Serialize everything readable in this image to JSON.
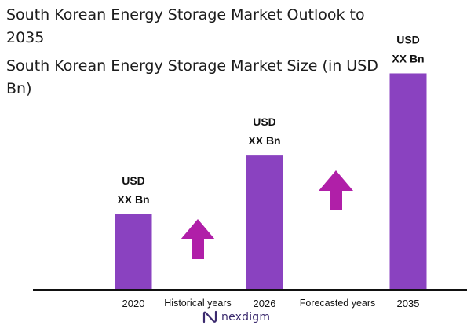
{
  "title": "South Korean Energy Storage  Market Outlook to 2035",
  "subtitle": "South Korean Energy Storage  Market Size (in USD Bn)",
  "chart_data": {
    "type": "bar",
    "categories": [
      "2020",
      "2026",
      "2035"
    ],
    "values": [
      100,
      178,
      287
    ],
    "value_labels": [
      [
        "USD",
        "XX Bn"
      ],
      [
        "USD",
        "XX Bn"
      ],
      [
        "USD",
        "XX Bn"
      ]
    ],
    "period_labels": [
      "Historical years",
      "Forecasted years"
    ],
    "bar_color": "#8a42c0",
    "arrow_color": "#b01fa8",
    "axis_color": "#111111",
    "xlabel": "",
    "ylabel": "",
    "grid": false,
    "legend": "none"
  },
  "brand": {
    "logo_text": "nexdigm",
    "logo_icon": "nexdigm-n-icon",
    "color": "#3b2a6e"
  }
}
